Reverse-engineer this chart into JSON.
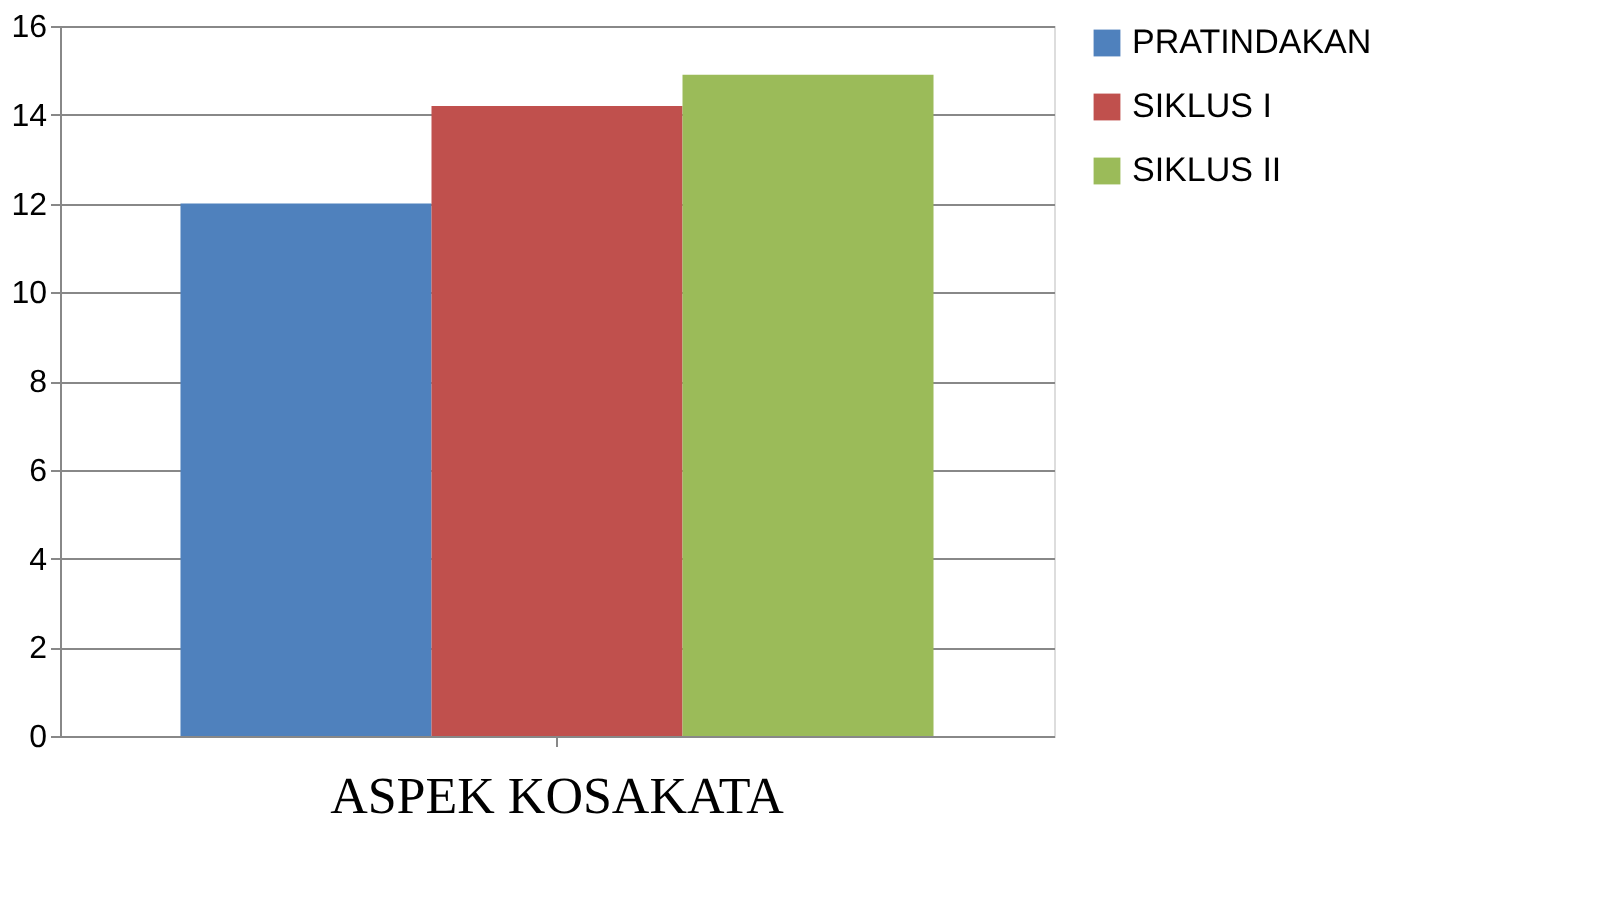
{
  "chart_data": {
    "type": "bar",
    "categories": [
      "ASPEK KOSAKATA"
    ],
    "series": [
      {
        "name": "PRATINDAKAN",
        "color": "#4f81bd",
        "values": [
          12
        ]
      },
      {
        "name": "SIKLUS I",
        "color": "#c0504d",
        "values": [
          14.2
        ]
      },
      {
        "name": "SIKLUS II",
        "color": "#9bbb59",
        "values": [
          14.9
        ]
      }
    ],
    "ylim": [
      0,
      16
    ],
    "yticks": [
      0,
      2,
      4,
      6,
      8,
      10,
      12,
      14,
      16
    ],
    "grid": "y",
    "legend": "right"
  }
}
